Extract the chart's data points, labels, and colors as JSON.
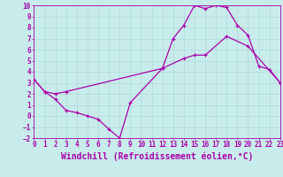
{
  "xlabel": "Windchill (Refroidissement éolien,°C)",
  "xlim": [
    0,
    23
  ],
  "ylim": [
    -2,
    10
  ],
  "xticks": [
    0,
    1,
    2,
    3,
    4,
    5,
    6,
    7,
    8,
    9,
    10,
    11,
    12,
    13,
    14,
    15,
    16,
    17,
    18,
    19,
    20,
    21,
    22,
    23
  ],
  "yticks": [
    -2,
    -1,
    0,
    1,
    2,
    3,
    4,
    5,
    6,
    7,
    8,
    9,
    10
  ],
  "background_color": "#c8ecec",
  "grid_color": "#b0d8d8",
  "line_color": "#aa00aa",
  "line1_x": [
    0,
    1,
    2,
    3,
    4,
    5,
    6,
    7,
    8,
    9,
    12,
    13,
    14,
    15,
    16,
    17,
    18,
    19,
    20,
    21,
    22,
    23
  ],
  "line1_y": [
    3.3,
    2.2,
    1.5,
    0.5,
    0.3,
    0.0,
    -0.3,
    -1.2,
    -2.0,
    1.2,
    4.3,
    7.0,
    8.2,
    10.0,
    9.7,
    10.0,
    9.8,
    8.2,
    7.3,
    4.5,
    4.2,
    3.0
  ],
  "line2_x": [
    0,
    1,
    2,
    3,
    12,
    14,
    15,
    16,
    18,
    20,
    23
  ],
  "line2_y": [
    3.3,
    2.2,
    2.0,
    2.2,
    4.3,
    5.2,
    5.5,
    5.5,
    7.2,
    6.3,
    3.0
  ],
  "font_color": "#aa00aa",
  "tick_fontsize": 5.5,
  "label_fontsize": 7
}
